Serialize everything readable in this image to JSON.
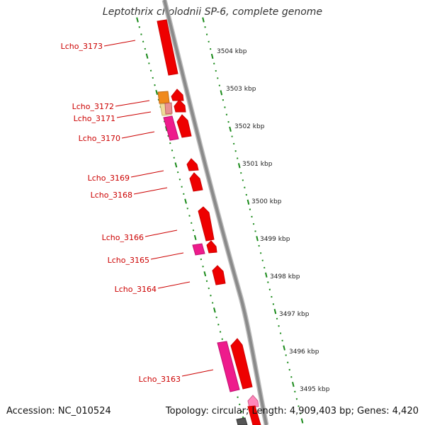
{
  "title": "Leptothrix cholodnii SP-6, complete genome",
  "footer": {
    "accession": "Accession: NC_010524",
    "summary": "Topology: circular; Length: 4,909,403 bp; Genes: 4,420"
  },
  "colors": {
    "gene_red": "#ee0000",
    "gene_magenta": "#ee1b8c",
    "gene_orange": "#f08a1c",
    "gene_pale": "#eedd99",
    "backbone": "#8a8a8a",
    "tick_green": "#1a8a1a",
    "label_red": "#cc0000"
  },
  "kbp_ticks": [
    "3504 kbp",
    "3503 kbp",
    "3502 kbp",
    "3501 kbp",
    "3500 kbp",
    "3499 kbp",
    "3498 kbp",
    "3497 kbp",
    "3496 kbp",
    "3495 kbp"
  ],
  "gene_labels": [
    "Lcho_3173",
    "Lcho_3172",
    "Lcho_3171",
    "Lcho_3170",
    "Lcho_3169",
    "Lcho_3168",
    "Lcho_3166",
    "Lcho_3165",
    "Lcho_3164",
    "Lcho_3163"
  ]
}
